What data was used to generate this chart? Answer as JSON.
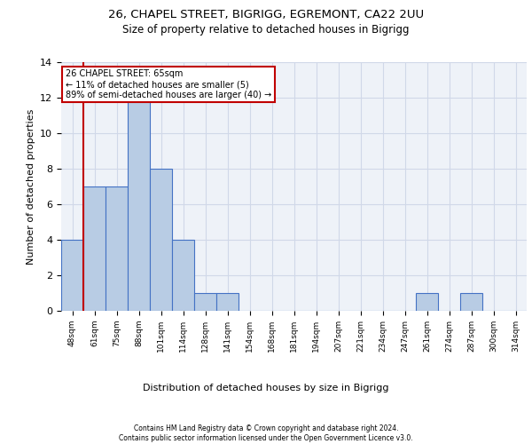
{
  "title_line1": "26, CHAPEL STREET, BIGRIGG, EGREMONT, CA22 2UU",
  "title_line2": "Size of property relative to detached houses in Bigrigg",
  "xlabel": "Distribution of detached houses by size in Bigrigg",
  "ylabel": "Number of detached properties",
  "bin_labels": [
    "48sqm",
    "61sqm",
    "75sqm",
    "88sqm",
    "101sqm",
    "114sqm",
    "128sqm",
    "141sqm",
    "154sqm",
    "168sqm",
    "181sqm",
    "194sqm",
    "207sqm",
    "221sqm",
    "234sqm",
    "247sqm",
    "261sqm",
    "274sqm",
    "287sqm",
    "300sqm",
    "314sqm"
  ],
  "bar_heights": [
    4,
    7,
    7,
    12,
    8,
    4,
    1,
    1,
    0,
    0,
    0,
    0,
    0,
    0,
    0,
    0,
    1,
    0,
    1,
    0,
    0
  ],
  "bar_color": "#b8cce4",
  "bar_edge_color": "#4472c4",
  "grid_color": "#d0d8e8",
  "background_color": "#eef2f8",
  "vline_color": "#c00000",
  "vline_x_index": 1,
  "annotation_title": "26 CHAPEL STREET: 65sqm",
  "annotation_line2": "← 11% of detached houses are smaller (5)",
  "annotation_line3": "89% of semi-detached houses are larger (40) →",
  "annotation_box_color": "#c00000",
  "ylim": [
    0,
    14
  ],
  "yticks": [
    0,
    2,
    4,
    6,
    8,
    10,
    12,
    14
  ],
  "footer_line1": "Contains HM Land Registry data © Crown copyright and database right 2024.",
  "footer_line2": "Contains public sector information licensed under the Open Government Licence v3.0."
}
